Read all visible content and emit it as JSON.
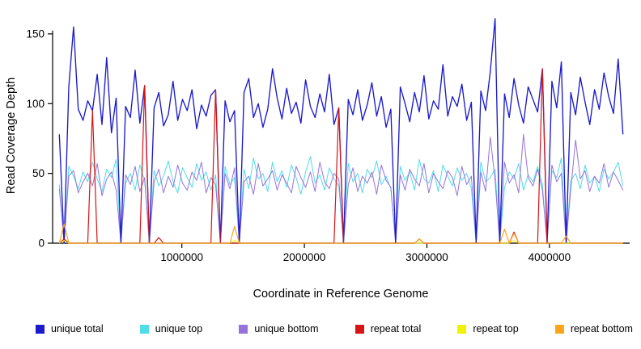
{
  "chart_data": {
    "type": "line",
    "title": "",
    "xlabel": "Coordinate in Reference Genome",
    "ylabel": "Read Coverage Depth",
    "xlim": [
      0,
      4600000
    ],
    "ylim": [
      0,
      165
    ],
    "grid": false,
    "legend_position": "bottom",
    "x_ticks": [
      1000000,
      2000000,
      3000000,
      4000000
    ],
    "x_tick_labels": [
      "1000000",
      "2000000",
      "3000000",
      "4000000"
    ],
    "y_ticks": [
      0,
      50,
      100,
      150
    ],
    "y_tick_labels": [
      "0",
      "50",
      "100",
      "150"
    ],
    "n_points": 120,
    "series": [
      {
        "name": "unique total",
        "color": "#1b1bcd",
        "line_width": 1.35,
        "values": [
          78,
          0,
          112,
          155,
          96,
          88,
          102,
          95,
          121,
          85,
          133,
          79,
          104,
          0,
          98,
          90,
          124,
          86,
          113,
          0,
          97,
          108,
          84,
          92,
          116,
          88,
          103,
          95,
          110,
          82,
          99,
          91,
          106,
          110,
          0,
          102,
          87,
          95,
          0,
          108,
          118,
          90,
          100,
          83,
          96,
          125,
          104,
          89,
          111,
          93,
          101,
          86,
          117,
          98,
          90,
          107,
          94,
          121,
          85,
          97,
          0,
          103,
          92,
          110,
          88,
          99,
          115,
          91,
          105,
          83,
          96,
          0,
          112,
          100,
          87,
          108,
          94,
          120,
          89,
          102,
          96,
          128,
          91,
          105,
          98,
          114,
          88,
          101,
          0,
          109,
          95,
          123,
          161,
          0,
          107,
          90,
          118,
          99,
          86,
          112,
          103,
          94,
          125,
          0,
          116,
          97,
          130,
          0,
          108,
          92,
          119,
          101,
          85,
          110,
          96,
          122,
          105,
          93,
          132,
          78
        ]
      },
      {
        "name": "unique top",
        "color": "#4fdde8",
        "line_width": 1.0,
        "values": [
          42,
          0,
          55,
          48,
          39,
          51,
          44,
          58,
          46,
          37,
          53,
          47,
          60,
          0,
          43,
          50,
          38,
          56,
          45,
          0,
          52,
          41,
          48,
          59,
          44,
          36,
          54,
          47,
          40,
          57,
          45,
          51,
          38,
          49,
          0,
          55,
          42,
          47,
          0,
          53,
          39,
          61,
          46,
          50,
          37,
          58,
          44,
          52,
          40,
          56,
          47,
          35,
          51,
          62,
          43,
          49,
          38,
          54,
          46,
          41,
          0,
          57,
          44,
          50,
          36,
          53,
          47,
          59,
          42,
          48,
          39,
          0,
          55,
          45,
          51,
          38,
          60,
          46,
          43,
          52,
          37,
          56,
          48,
          41,
          54,
          45,
          50,
          39,
          0,
          58,
          44,
          47,
          53,
          0,
          40,
          51,
          46,
          57,
          38,
          49,
          44,
          55,
          42,
          0,
          52,
          47,
          61,
          0,
          45,
          50,
          39,
          56,
          43,
          48,
          37,
          53,
          46,
          51,
          58,
          41
        ]
      },
      {
        "name": "unique bottom",
        "color": "#9673db",
        "line_width": 1.0,
        "values": [
          39,
          0,
          48,
          52,
          36,
          44,
          50,
          41,
          57,
          34,
          46,
          51,
          38,
          0,
          49,
          42,
          55,
          37,
          47,
          0,
          44,
          53,
          36,
          48,
          40,
          56,
          43,
          38,
          51,
          45,
          58,
          36,
          47,
          42,
          0,
          50,
          39,
          54,
          0,
          44,
          48,
          35,
          57,
          41,
          46,
          52,
          38,
          49,
          43,
          36,
          55,
          47,
          40,
          51,
          37,
          58,
          44,
          39,
          50,
          46,
          0,
          42,
          54,
          37,
          48,
          43,
          51,
          35,
          56,
          45,
          40,
          0,
          49,
          38,
          53,
          46,
          41,
          57,
          36,
          50,
          44,
          39,
          52,
          47,
          34,
          55,
          42,
          48,
          0,
          51,
          37,
          76,
          45,
          0,
          58,
          43,
          49,
          36,
          78,
          47,
          41,
          53,
          38,
          0,
          56,
          44,
          50,
          0,
          39,
          74,
          46,
          52,
          37,
          48,
          43,
          57,
          40,
          51,
          45,
          38
        ]
      },
      {
        "name": "repeat total",
        "color": "#d81414",
        "line_width": 1.2,
        "values": [
          0,
          3,
          0,
          0,
          0,
          0,
          0,
          95,
          0,
          0,
          0,
          0,
          0,
          0,
          0,
          0,
          0,
          0,
          113,
          0,
          0,
          4,
          0,
          0,
          0,
          0,
          0,
          0,
          0,
          0,
          0,
          0,
          0,
          110,
          0,
          0,
          0,
          0,
          0,
          0,
          0,
          0,
          0,
          0,
          0,
          0,
          0,
          0,
          0,
          0,
          0,
          0,
          0,
          0,
          0,
          0,
          0,
          0,
          0,
          97,
          0,
          0,
          0,
          0,
          0,
          0,
          0,
          0,
          0,
          0,
          0,
          0,
          0,
          0,
          0,
          0,
          3,
          0,
          0,
          0,
          0,
          0,
          0,
          0,
          0,
          0,
          0,
          0,
          0,
          0,
          0,
          0,
          0,
          0,
          0,
          0,
          8,
          0,
          0,
          0,
          0,
          0,
          125,
          0,
          0,
          0,
          0,
          0,
          0,
          0,
          0,
          0,
          0,
          0,
          0,
          0,
          0,
          0,
          0,
          0
        ]
      },
      {
        "name": "repeat top",
        "color": "#f2f200",
        "line_width": 1.0,
        "values": [
          0,
          2,
          0,
          0,
          0,
          0,
          0,
          0,
          0,
          0,
          0,
          0,
          0,
          0,
          0,
          0,
          0,
          0,
          0,
          0,
          0,
          0,
          0,
          0,
          0,
          0,
          0,
          0,
          0,
          0,
          0,
          0,
          0,
          0,
          0,
          0,
          0,
          2,
          0,
          0,
          0,
          0,
          0,
          0,
          0,
          0,
          0,
          0,
          0,
          0,
          0,
          0,
          0,
          0,
          0,
          0,
          0,
          0,
          0,
          0,
          0,
          0,
          0,
          0,
          0,
          0,
          0,
          0,
          0,
          0,
          0,
          0,
          0,
          0,
          0,
          0,
          0,
          0,
          0,
          0,
          0,
          0,
          0,
          0,
          0,
          0,
          0,
          0,
          0,
          0,
          0,
          0,
          0,
          0,
          0,
          0,
          2,
          0,
          0,
          0,
          0,
          0,
          0,
          0,
          0,
          0,
          0,
          0,
          0,
          0,
          0,
          0,
          0,
          0,
          0,
          0,
          0,
          0,
          0,
          0
        ]
      },
      {
        "name": "repeat bottom",
        "color": "#ffa41b",
        "line_width": 1.2,
        "values": [
          0,
          14,
          0,
          0,
          0,
          0,
          0,
          0,
          0,
          0,
          0,
          0,
          0,
          0,
          0,
          0,
          0,
          0,
          0,
          0,
          0,
          0,
          0,
          0,
          0,
          0,
          0,
          0,
          0,
          0,
          0,
          0,
          0,
          0,
          0,
          0,
          0,
          12,
          0,
          0,
          0,
          0,
          0,
          0,
          0,
          0,
          0,
          0,
          0,
          0,
          0,
          0,
          0,
          0,
          0,
          0,
          0,
          0,
          0,
          0,
          0,
          0,
          0,
          0,
          0,
          0,
          0,
          0,
          0,
          0,
          0,
          0,
          0,
          0,
          0,
          0,
          3,
          0,
          0,
          0,
          0,
          0,
          0,
          0,
          0,
          0,
          0,
          0,
          0,
          0,
          0,
          0,
          0,
          0,
          10,
          0,
          7,
          0,
          0,
          0,
          0,
          0,
          0,
          0,
          0,
          0,
          0,
          5,
          0,
          0,
          0,
          0,
          0,
          0,
          0,
          0,
          0,
          0,
          0,
          0
        ]
      }
    ],
    "legend": [
      "unique total",
      "unique top",
      "unique bottom",
      "repeat total",
      "repeat top",
      "repeat bottom"
    ]
  }
}
